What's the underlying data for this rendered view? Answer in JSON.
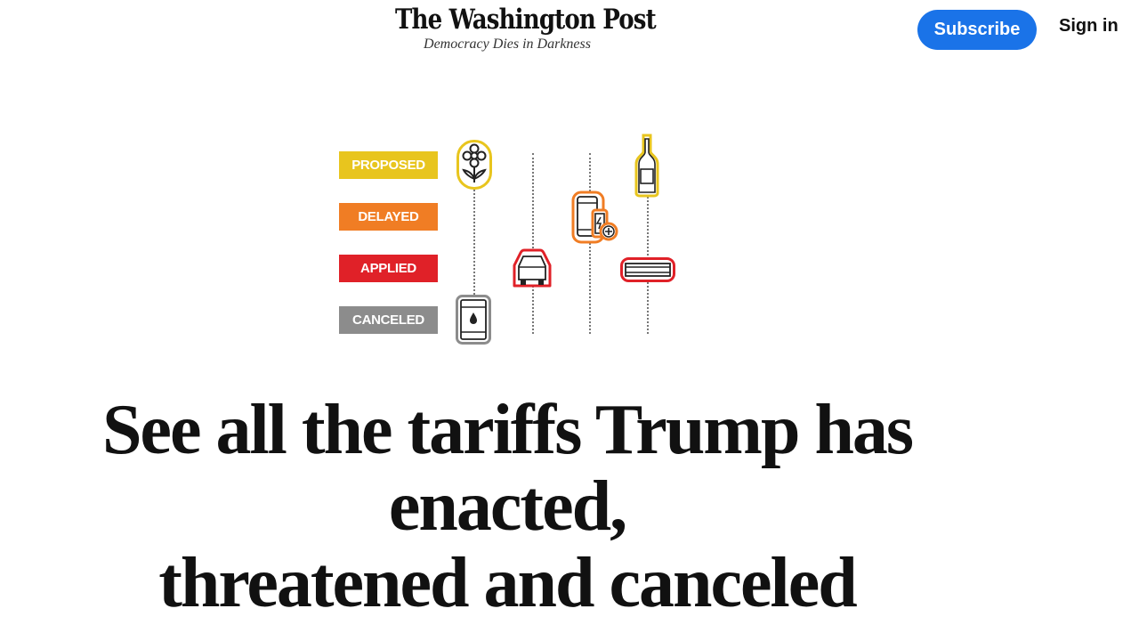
{
  "header": {
    "logo_text": "The Washington Post",
    "tagline": "Democracy Dies in Darkness",
    "subscribe_label": "Subscribe",
    "signin_label": "Sign in"
  },
  "graphic": {
    "statuses": [
      {
        "label": "PROPOSED",
        "color": "#e8c51e"
      },
      {
        "label": "DELAYED",
        "color": "#f07d24"
      },
      {
        "label": "APPLIED",
        "color": "#e02128"
      },
      {
        "label": "CANCELED",
        "color": "#8c8c8c"
      }
    ],
    "icons": [
      "flower-icon",
      "car-icon",
      "phone-battery-icon",
      "wine-bottle-icon",
      "steel-beam-icon",
      "oil-barrel-icon"
    ]
  },
  "colors": {
    "accent": "#1a73e8",
    "proposed": "#e8c51e",
    "delayed": "#f07d24",
    "applied": "#e02128",
    "canceled": "#8c8c8c"
  },
  "headline": {
    "line1": "See all the tariffs Trump has enacted,",
    "line2": "threatened and canceled"
  }
}
